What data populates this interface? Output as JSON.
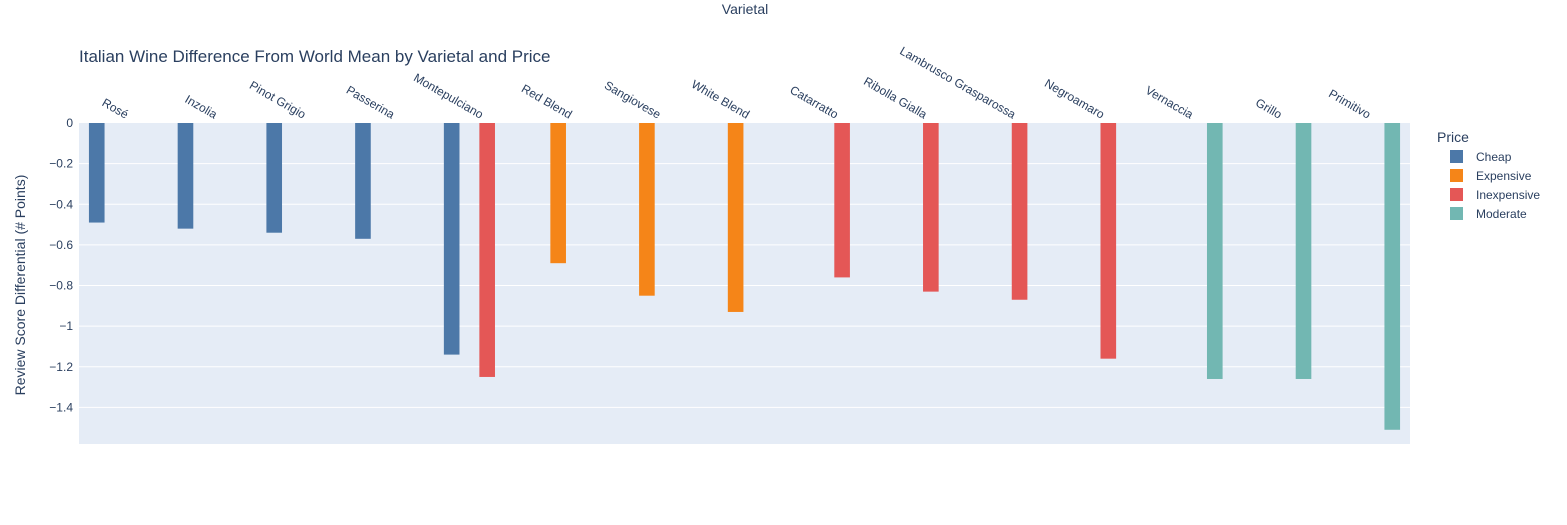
{
  "chart_data": {
    "type": "bar",
    "title": "Italian Wine Difference From World Mean by Varietal and Price",
    "xlabel": "Varietal",
    "ylabel": "Review Score Differential (# Points)",
    "ylim": [
      -1.58,
      0
    ],
    "yticks": [
      0,
      -0.2,
      -0.4,
      -0.6,
      -0.8,
      -1,
      -1.2,
      -1.4
    ],
    "ytick_labels": [
      "0",
      "−0.2",
      "−0.4",
      "−0.6",
      "−0.8",
      "−1",
      "−1.2",
      "−1.4"
    ],
    "x_axis_position": "top",
    "grid": true,
    "legend_placement": "right",
    "legend_title": "Price",
    "categories": [
      "Rosé",
      "Inzolia",
      "Pinot Grigio",
      "Passerina",
      "Montepulciano",
      "Red Blend",
      "Sangiovese",
      "White Blend",
      "Catarratto",
      "Ribolla Gialla",
      "Lambrusco Grasparossa",
      "Negroamaro",
      "Vernaccia",
      "Grillo",
      "Primitivo"
    ],
    "series": [
      {
        "name": "Cheap",
        "color": "#4c78a8",
        "values": [
          -0.49,
          -0.52,
          -0.54,
          -0.57,
          -1.14,
          null,
          null,
          null,
          null,
          null,
          null,
          null,
          null,
          null,
          null
        ]
      },
      {
        "name": "Expensive",
        "color": "#f58518",
        "values": [
          null,
          null,
          null,
          null,
          null,
          -0.69,
          -0.85,
          -0.93,
          null,
          null,
          null,
          null,
          null,
          null,
          null
        ]
      },
      {
        "name": "Inexpensive",
        "color": "#e45756",
        "values": [
          null,
          null,
          null,
          null,
          -1.25,
          null,
          null,
          null,
          -0.76,
          -0.83,
          -0.87,
          -1.16,
          null,
          null,
          null
        ]
      },
      {
        "name": "Moderate",
        "color": "#72b7b2",
        "values": [
          null,
          null,
          null,
          null,
          null,
          null,
          null,
          null,
          null,
          null,
          null,
          null,
          -1.26,
          -1.26,
          -1.51
        ]
      }
    ]
  }
}
